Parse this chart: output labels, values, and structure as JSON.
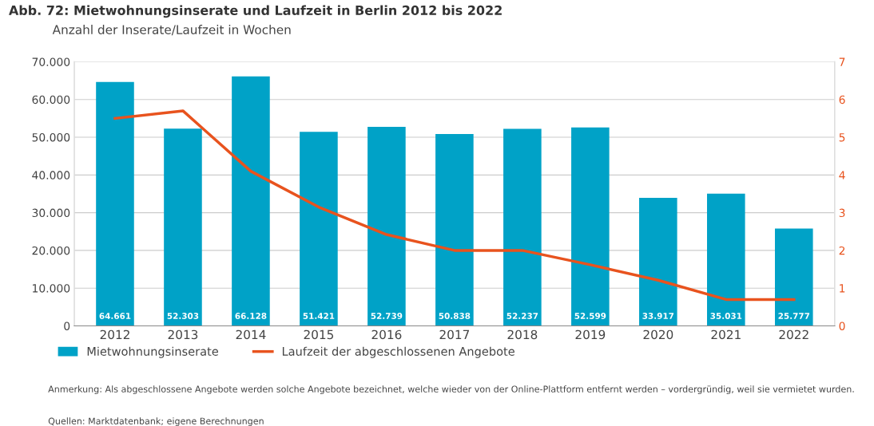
{
  "chart_data": {
    "type": "bar",
    "title": "Abb. 72: Mietwohnungsinserate und Laufzeit in Berlin 2012 bis 2022",
    "subtitle": "Anzahl der Inserate/Laufzeit in Wochen",
    "categories": [
      "2012",
      "2013",
      "2014",
      "2015",
      "2016",
      "2017",
      "2018",
      "2019",
      "2020",
      "2021",
      "2022"
    ],
    "series": [
      {
        "name": "Mietwohnungsinserate",
        "color": "#00a2c7",
        "values": [
          64661,
          52303,
          66128,
          51421,
          52739,
          50838,
          52237,
          52599,
          33917,
          35031,
          25777
        ],
        "value_labels": [
          "64.661",
          "52.303",
          "66.128",
          "51.421",
          "52.739",
          "50.838",
          "52.237",
          "52.599",
          "33.917",
          "35.031",
          "25.777"
        ]
      },
      {
        "name": "Laufzeit der abgeschlossenen Angebote",
        "type": "line",
        "axis": "y2",
        "color": "#e8531e",
        "values": [
          5.5,
          5.7,
          4.1,
          3.15,
          2.42,
          2.0,
          2.0,
          1.62,
          1.21,
          0.7,
          0.7
        ]
      }
    ],
    "ylim": [
      0,
      70000
    ],
    "yticks": [
      {
        "value": 0,
        "label": "0"
      },
      {
        "value": 10000,
        "label": "10.000"
      },
      {
        "value": 20000,
        "label": "20.000"
      },
      {
        "value": 30000,
        "label": "30.000"
      },
      {
        "value": 40000,
        "label": "40.000"
      },
      {
        "value": 50000,
        "label": "50.000"
      },
      {
        "value": 60000,
        "label": "60.000"
      },
      {
        "value": 70000,
        "label": "70.000"
      }
    ],
    "y2lim": [
      0,
      7
    ],
    "y2ticks": [
      0,
      1,
      2,
      3,
      4,
      5,
      6,
      7
    ],
    "grid": "y",
    "legend": "bottom",
    "marker": "none",
    "line_style": "solid",
    "annotations": [
      "Anmerkung: Als abgeschlossene Angebote werden solche Angebote bezeichnet, welche wieder von der Online-Plattform entfernt werden – vordergründig, weil sie vermietet wurden.",
      "Quellen: Marktdatenbank; eigene Berechnungen"
    ]
  }
}
